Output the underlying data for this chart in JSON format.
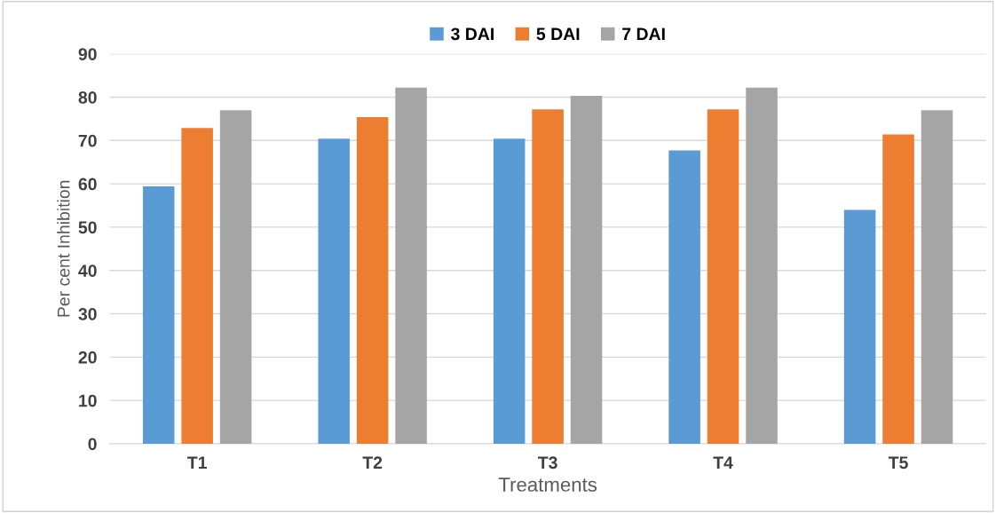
{
  "chart_data": {
    "type": "bar",
    "xlabel": "Treatments",
    "ylabel": "Per cent Inhibition",
    "categories": [
      "T1",
      "T2",
      "T3",
      "T4",
      "T5"
    ],
    "series": [
      {
        "name": "3 DAI",
        "color": "#5b9bd5",
        "values": [
          59.4,
          70.4,
          70.4,
          67.7,
          54.0
        ]
      },
      {
        "name": "5 DAI",
        "color": "#ed7d31",
        "values": [
          72.9,
          75.4,
          77.2,
          77.2,
          71.4
        ]
      },
      {
        "name": "7 DAI",
        "color": "#a5a5a5",
        "values": [
          77.0,
          82.2,
          80.3,
          82.2,
          77.0
        ]
      }
    ],
    "ylim": [
      0,
      90
    ],
    "yticks": [
      0,
      10,
      20,
      30,
      40,
      50,
      60,
      70,
      80,
      90
    ],
    "grid": "y",
    "legend": "top"
  }
}
